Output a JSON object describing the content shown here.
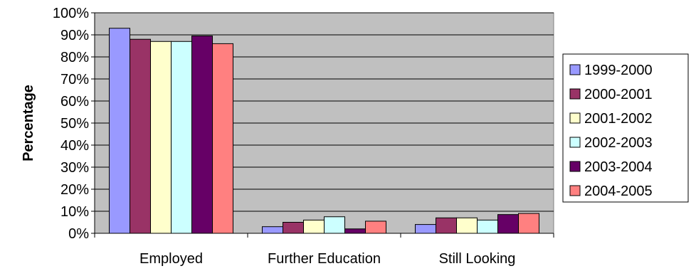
{
  "chart_data": {
    "type": "bar",
    "title": "",
    "xlabel": "",
    "ylabel": "Percentage",
    "ylim": [
      0,
      100
    ],
    "ytick_step": 10,
    "ytick_labels": [
      "0%",
      "10%",
      "20%",
      "30%",
      "40%",
      "50%",
      "60%",
      "70%",
      "80%",
      "90%",
      "100%"
    ],
    "categories": [
      "Employed",
      "Further Education",
      "Still Looking"
    ],
    "series": [
      {
        "name": "1999-2000",
        "color": "#9999ff",
        "values": [
          93,
          3,
          4
        ]
      },
      {
        "name": "2000-2001",
        "color": "#993366",
        "values": [
          88,
          5,
          7
        ]
      },
      {
        "name": "2001-2002",
        "color": "#ffffcc",
        "values": [
          87,
          6,
          7
        ]
      },
      {
        "name": "2002-2003",
        "color": "#ccffff",
        "values": [
          87,
          7.5,
          6
        ]
      },
      {
        "name": "2003-2004",
        "color": "#660066",
        "values": [
          89.5,
          2,
          8.5
        ]
      },
      {
        "name": "2004-2005",
        "color": "#ff8080",
        "values": [
          86,
          5.5,
          9
        ]
      }
    ],
    "plot_background": "#c0c0c0",
    "grid": true,
    "legend_position": "right"
  }
}
